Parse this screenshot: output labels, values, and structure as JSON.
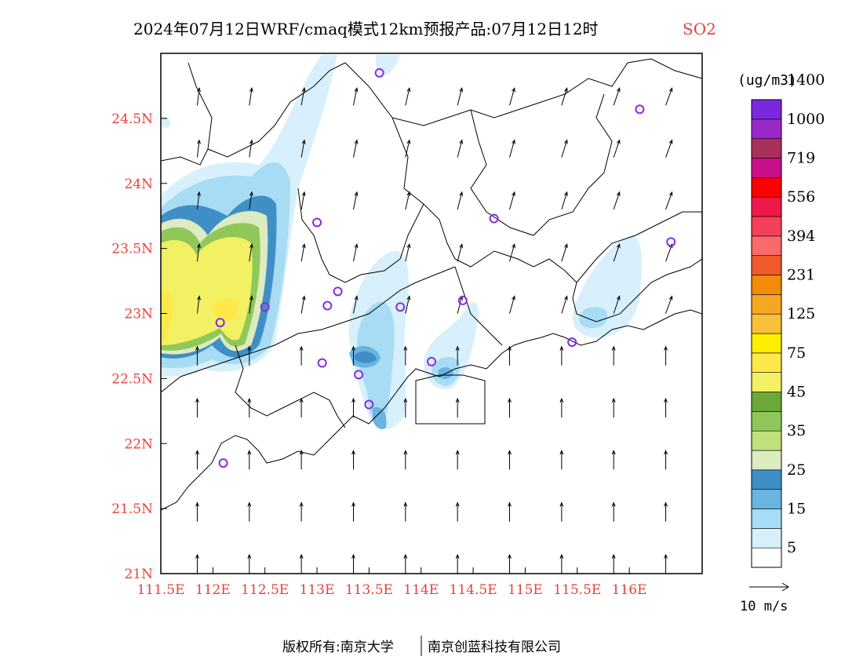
{
  "title": {
    "text": "2024年07月12日WRF/cmaq模式12km预报产品:07月12日12时",
    "species": "SO2",
    "species_color": "#e8423a"
  },
  "map": {
    "lon_range": [
      111.5,
      116.7
    ],
    "lat_range": [
      21.0,
      25.0
    ],
    "lon_ticks": [
      "111.5E",
      "112E",
      "112.5E",
      "113E",
      "113.5E",
      "114E",
      "114.5E",
      "115E",
      "115.5E",
      "116E"
    ],
    "lat_ticks": [
      "21N",
      "21.5N",
      "22N",
      "22.5N",
      "23N",
      "23.5N",
      "24N",
      "24.5N"
    ],
    "tick_color": "#e8423a"
  },
  "legend": {
    "unit": "(ug/m3)",
    "levels": [
      "5",
      "15",
      "25",
      "35",
      "45",
      "75",
      "125",
      "231",
      "394",
      "556",
      "719",
      "1000",
      "1400"
    ],
    "colors": [
      "#ffffff",
      "#d8f0fb",
      "#a8dcf5",
      "#6ab4e0",
      "#3f8fc6",
      "#dcebc0",
      "#bfe07a",
      "#8fc858",
      "#6aa83a",
      "#f1f163",
      "#ffe84a",
      "#ffee00",
      "#f9c13a",
      "#f6a623",
      "#f28a0a",
      "#ee5a2a",
      "#fa6a6a",
      "#f5405a",
      "#f01849",
      "#ff0000",
      "#c8108a",
      "#a8305a",
      "#9a28c8",
      "#7a28e0"
    ]
  },
  "wind_scale": {
    "label": "10 m/s"
  },
  "stations": [
    [
      113.6,
      24.85
    ],
    [
      116.1,
      24.57
    ],
    [
      113.0,
      23.7
    ],
    [
      114.7,
      23.73
    ],
    [
      116.4,
      23.55
    ],
    [
      112.5,
      23.05
    ],
    [
      113.2,
      23.17
    ],
    [
      113.1,
      23.06
    ],
    [
      113.8,
      23.05
    ],
    [
      114.4,
      23.1
    ],
    [
      112.07,
      22.93
    ],
    [
      113.05,
      22.62
    ],
    [
      113.4,
      22.53
    ],
    [
      114.1,
      22.63
    ],
    [
      115.45,
      22.78
    ],
    [
      113.5,
      22.3
    ],
    [
      112.1,
      21.85
    ]
  ],
  "footer": {
    "left": "版权所有:南京大学",
    "right": "南京创蓝科技有限公司"
  }
}
